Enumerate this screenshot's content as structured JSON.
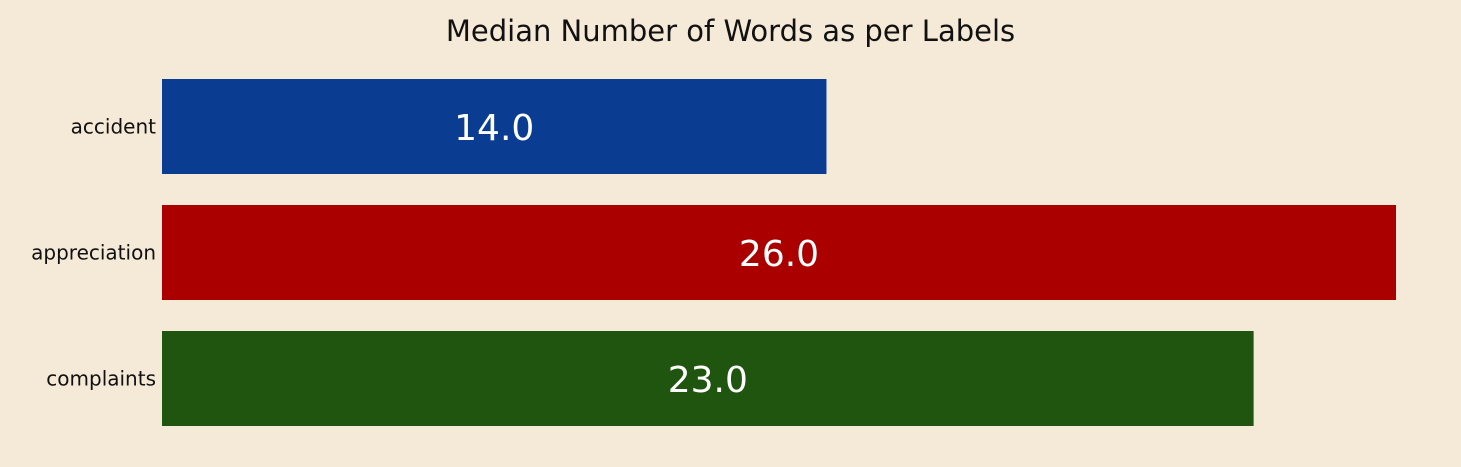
{
  "chart_data": {
    "type": "bar",
    "orientation": "horizontal",
    "title": "Median Number of Words as per Labels",
    "xlabel": "",
    "ylabel": "",
    "categories": [
      "accident",
      "appreciation",
      "complaints"
    ],
    "values": [
      14.0,
      26.0,
      23.0
    ],
    "value_labels": [
      "14.0",
      "26.0",
      "23.0"
    ],
    "colors": [
      "#0a3d91",
      "#aa0000",
      "#20550f"
    ],
    "xlim": [
      0,
      26
    ],
    "grid": false,
    "legend": "none"
  },
  "colors": {
    "background": "#f5e9d8",
    "text": "#111111",
    "value_text": "#ffffff"
  }
}
